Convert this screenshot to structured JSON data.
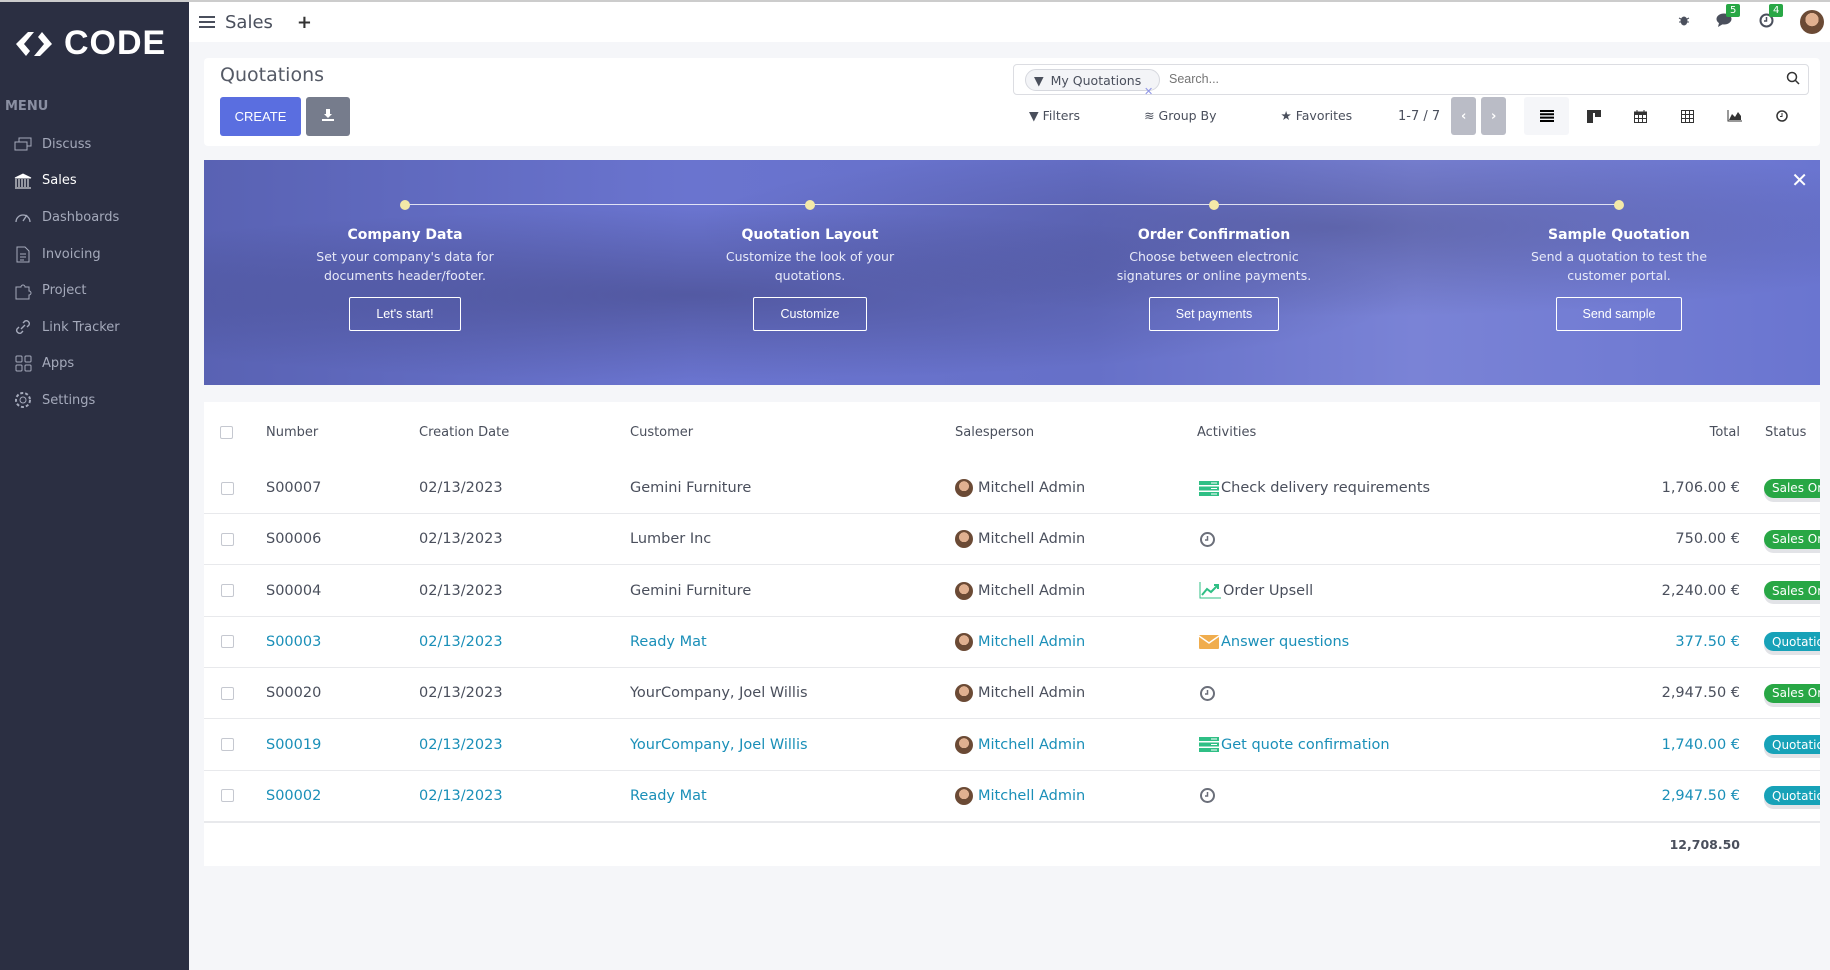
{
  "brand": {
    "name": "CODE"
  },
  "sidebar": {
    "menu_label": "MENU",
    "items": [
      {
        "label": "Discuss",
        "icon": "discuss-icon"
      },
      {
        "label": "Sales",
        "icon": "sales-icon",
        "active": true
      },
      {
        "label": "Dashboards",
        "icon": "dashboard-icon"
      },
      {
        "label": "Invoicing",
        "icon": "invoice-icon"
      },
      {
        "label": "Project",
        "icon": "puzzle-icon"
      },
      {
        "label": "Link Tracker",
        "icon": "link-icon"
      },
      {
        "label": "Apps",
        "icon": "apps-icon"
      },
      {
        "label": "Settings",
        "icon": "gear-icon"
      }
    ]
  },
  "topbar": {
    "app": "Sales",
    "messages_count": "5",
    "activities_count": "4"
  },
  "control": {
    "title": "Quotations",
    "create": "CREATE",
    "facet": "My Quotations",
    "search_placeholder": "Search...",
    "filters": "Filters",
    "group_by": "Group By",
    "favorites": "Favorites",
    "pager": "1-7 / 7"
  },
  "banner": {
    "steps": [
      {
        "title": "Company Data",
        "desc1": "Set your company's data for",
        "desc2": "documents header/footer.",
        "button": "Let's start!"
      },
      {
        "title": "Quotation Layout",
        "desc1": "Customize the look of your",
        "desc2": "quotations.",
        "button": "Customize"
      },
      {
        "title": "Order Confirmation",
        "desc1": "Choose between electronic",
        "desc2": "signatures or online payments.",
        "button": "Set payments"
      },
      {
        "title": "Sample Quotation",
        "desc1": "Send a quotation to test the",
        "desc2": "customer portal.",
        "button": "Send sample"
      }
    ]
  },
  "table": {
    "headers": {
      "number": "Number",
      "date": "Creation Date",
      "customer": "Customer",
      "salesperson": "Salesperson",
      "activities": "Activities",
      "total": "Total",
      "status": "Status"
    },
    "rows": [
      {
        "number": "S00007",
        "date": "02/13/2023",
        "customer": "Gemini Furniture",
        "salesperson": "Mitchell Admin",
        "activity": "Check delivery requirements",
        "activity_icon": "todo-icon",
        "total": "1,706.00 €",
        "status": "Sales Order",
        "quotation": false
      },
      {
        "number": "S00006",
        "date": "02/13/2023",
        "customer": "Lumber Inc",
        "salesperson": "Mitchell Admin",
        "activity": "",
        "activity_icon": "clock-icon",
        "total": "750.00 €",
        "status": "Sales Order",
        "quotation": false
      },
      {
        "number": "S00004",
        "date": "02/13/2023",
        "customer": "Gemini Furniture",
        "salesperson": "Mitchell Admin",
        "activity": "Order Upsell",
        "activity_icon": "upsell-chart-icon",
        "total": "2,240.00 €",
        "status": "Sales Order",
        "quotation": false
      },
      {
        "number": "S00003",
        "date": "02/13/2023",
        "customer": "Ready Mat",
        "salesperson": "Mitchell Admin",
        "activity": "Answer questions",
        "activity_icon": "email-icon",
        "total": "377.50 €",
        "status": "Quotation",
        "quotation": true
      },
      {
        "number": "S00020",
        "date": "02/13/2023",
        "customer": "YourCompany, Joel Willis",
        "salesperson": "Mitchell Admin",
        "activity": "",
        "activity_icon": "clock-icon",
        "total": "2,947.50 €",
        "status": "Sales Order",
        "quotation": false
      },
      {
        "number": "S00019",
        "date": "02/13/2023",
        "customer": "YourCompany, Joel Willis",
        "salesperson": "Mitchell Admin",
        "activity": "Get quote confirmation",
        "activity_icon": "todo-icon",
        "total": "1,740.00 €",
        "status": "Quotation",
        "quotation": true
      },
      {
        "number": "S00002",
        "date": "02/13/2023",
        "customer": "Ready Mat",
        "salesperson": "Mitchell Admin",
        "activity": "",
        "activity_icon": "clock-icon",
        "total": "2,947.50 €",
        "status": "Quotation",
        "quotation": true
      }
    ],
    "grand_total": "12,708.50"
  },
  "colors": {
    "sales_order": "#28a745",
    "quotation": "#17a2b8",
    "primary": "#5a6ee0",
    "link": "#1a8fb8"
  }
}
